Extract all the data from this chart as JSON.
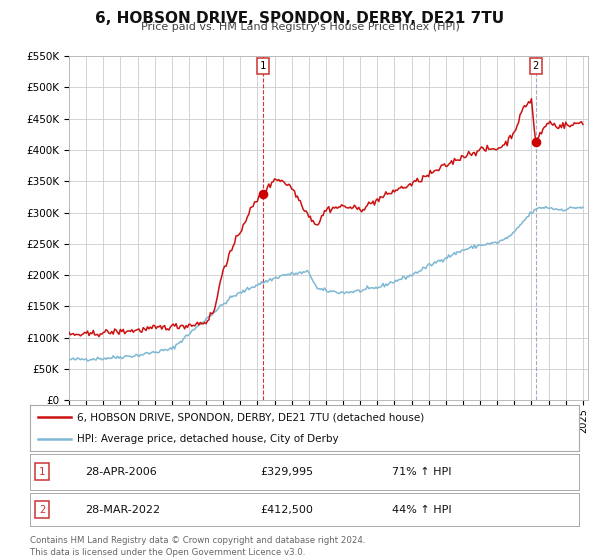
{
  "title": "6, HOBSON DRIVE, SPONDON, DERBY, DE21 7TU",
  "subtitle": "Price paid vs. HM Land Registry's House Price Index (HPI)",
  "hpi_color": "#7eb8d4",
  "price_color": "#cc1111",
  "dot_color": "#cc0000",
  "vline2_color": "#9999bb",
  "background_color": "#ffffff",
  "grid_color": "#cccccc",
  "ylim": [
    0,
    550000
  ],
  "yticks": [
    0,
    50000,
    100000,
    150000,
    200000,
    250000,
    300000,
    350000,
    400000,
    450000,
    500000,
    550000
  ],
  "ytick_labels": [
    "£0",
    "£50K",
    "£100K",
    "£150K",
    "£200K",
    "£250K",
    "£300K",
    "£350K",
    "£400K",
    "£450K",
    "£500K",
    "£550K"
  ],
  "xlim_start": 1995.0,
  "xlim_end": 2025.3,
  "sale1_x": 2006.32,
  "sale1_y": 329995,
  "sale1_label": "1",
  "sale1_date": "28-APR-2006",
  "sale1_price": "£329,995",
  "sale1_hpi": "71% ↑ HPI",
  "sale2_x": 2022.24,
  "sale2_y": 412500,
  "sale2_label": "2",
  "sale2_date": "28-MAR-2022",
  "sale2_price": "£412,500",
  "sale2_hpi": "44% ↑ HPI",
  "legend_label_price": "6, HOBSON DRIVE, SPONDON, DERBY, DE21 7TU (detached house)",
  "legend_label_hpi": "HPI: Average price, detached house, City of Derby",
  "footer_line1": "Contains HM Land Registry data © Crown copyright and database right 2024.",
  "footer_line2": "This data is licensed under the Open Government Licence v3.0."
}
